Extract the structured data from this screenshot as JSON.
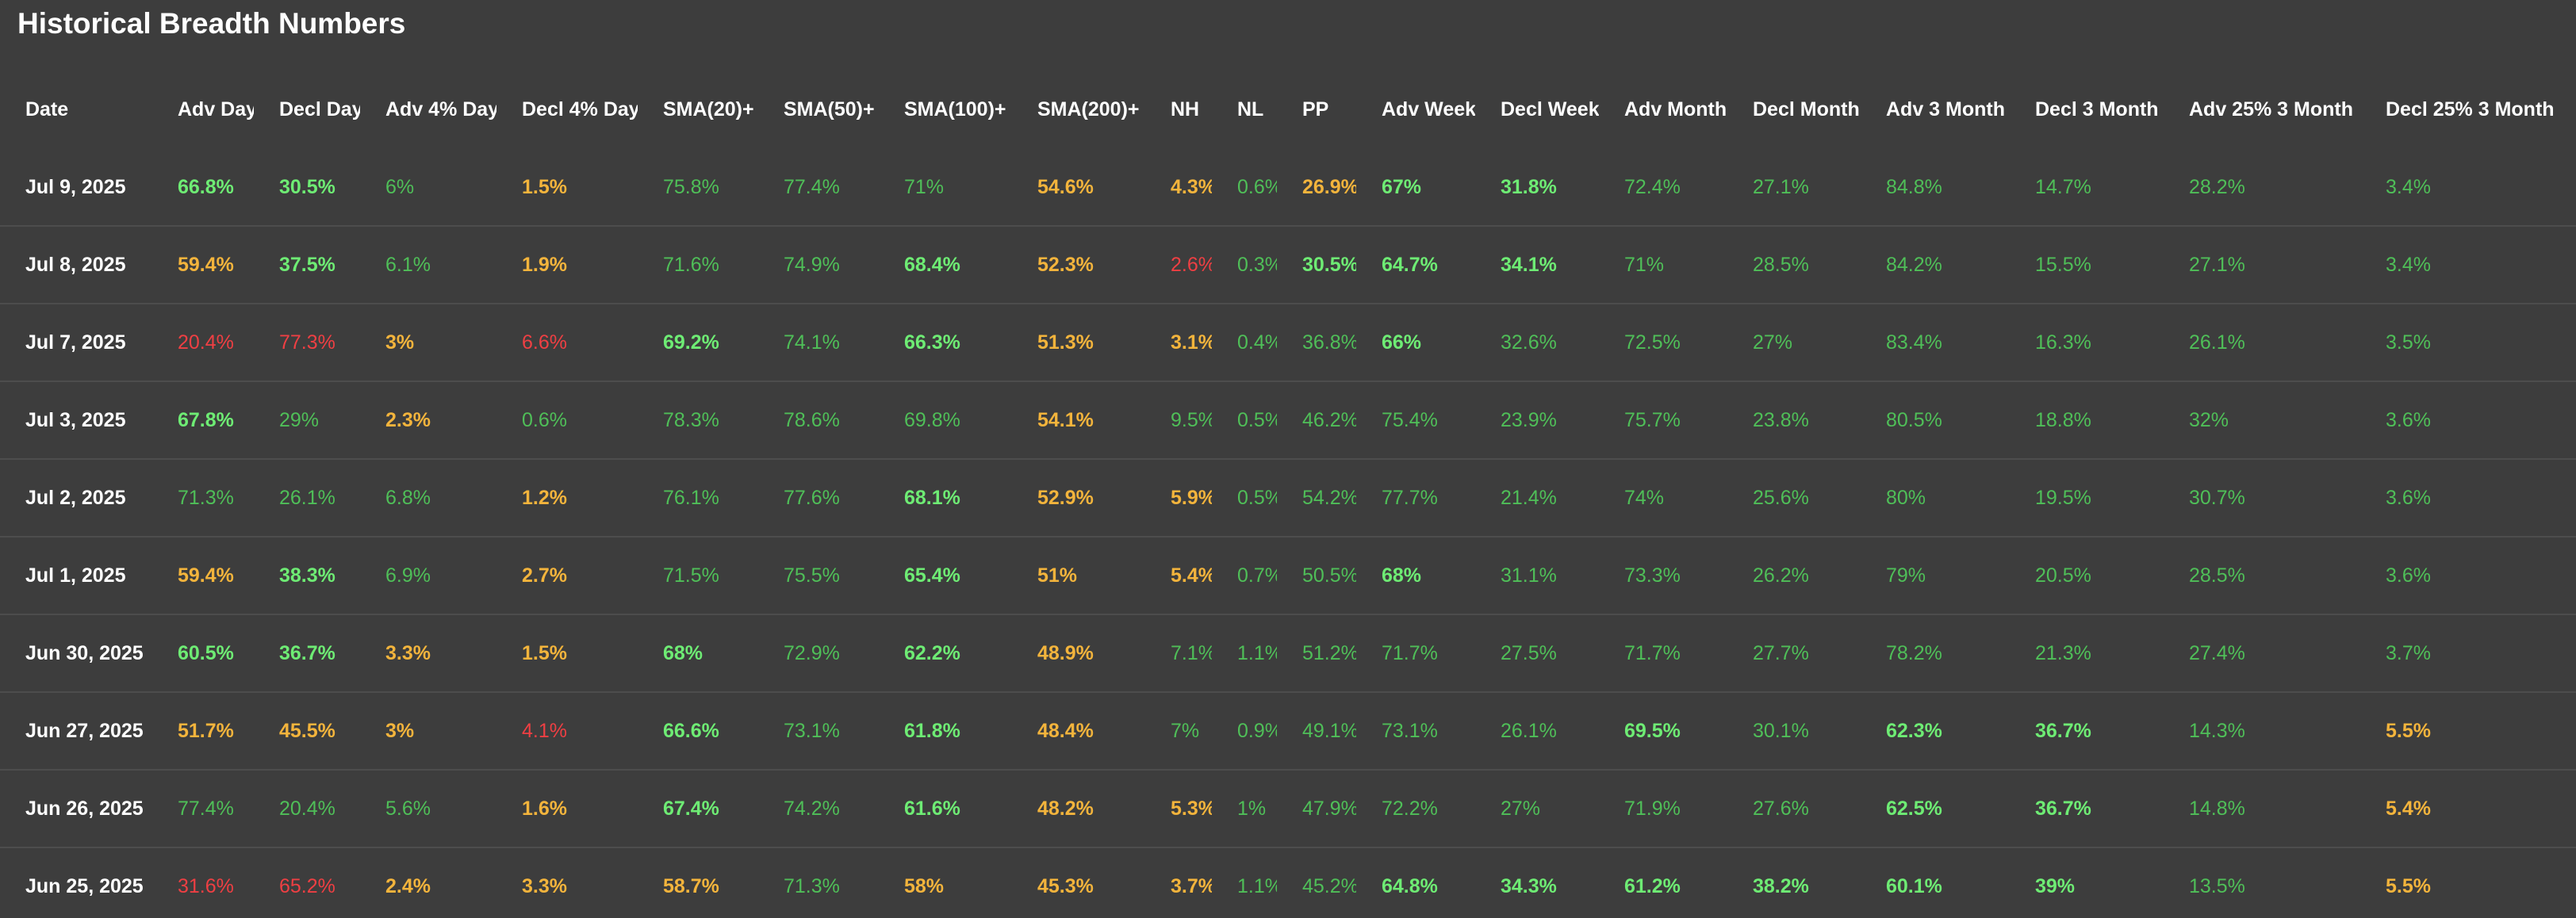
{
  "page": {
    "title": "Historical Breadth Numbers"
  },
  "colors": {
    "background": "#3d3d3d",
    "row_divider": "#4d4d4d",
    "header_text": "#ffffff",
    "green": "#4fbf58",
    "bright_green": "#6eec74",
    "yellow": "#f3b43c",
    "red": "#ef3f43"
  },
  "table": {
    "columns": [
      "Date",
      "Adv Day",
      "Decl Day",
      "Adv 4% Day",
      "Decl 4% Day",
      "SMA(20)+",
      "SMA(50)+",
      "SMA(100)+",
      "SMA(200)+",
      "NH",
      "NL",
      "PP",
      "Adv Week",
      "Decl Week",
      "Adv Month",
      "Decl Month",
      "Adv 3 Month",
      "Decl 3 Month",
      "Adv 25% 3 Month",
      "Decl 25% 3 Month"
    ],
    "rows": [
      {
        "cells": [
          "Jul 9, 2025",
          "66.8%",
          "30.5%",
          "6%",
          "1.5%",
          "75.8%",
          "77.4%",
          "71%",
          "54.6%",
          "4.3%",
          "0.6%",
          "26.9%",
          "67%",
          "31.8%",
          "72.4%",
          "27.1%",
          "84.8%",
          "14.7%",
          "28.2%",
          "3.4%"
        ],
        "colors": [
          "date",
          "gb",
          "gb",
          "g",
          "y",
          "g",
          "g",
          "g",
          "y",
          "y",
          "g",
          "y",
          "gb",
          "gb",
          "g",
          "g",
          "g",
          "g",
          "g",
          "g"
        ]
      },
      {
        "cells": [
          "Jul 8, 2025",
          "59.4%",
          "37.5%",
          "6.1%",
          "1.9%",
          "71.6%",
          "74.9%",
          "68.4%",
          "52.3%",
          "2.6%",
          "0.3%",
          "30.5%",
          "64.7%",
          "34.1%",
          "71%",
          "28.5%",
          "84.2%",
          "15.5%",
          "27.1%",
          "3.4%"
        ],
        "colors": [
          "date",
          "y",
          "gb",
          "g",
          "y",
          "g",
          "g",
          "gb",
          "y",
          "r",
          "g",
          "gb",
          "gb",
          "gb",
          "g",
          "g",
          "g",
          "g",
          "g",
          "g"
        ]
      },
      {
        "cells": [
          "Jul 7, 2025",
          "20.4%",
          "77.3%",
          "3%",
          "6.6%",
          "69.2%",
          "74.1%",
          "66.3%",
          "51.3%",
          "3.1%",
          "0.4%",
          "36.8%",
          "66%",
          "32.6%",
          "72.5%",
          "27%",
          "83.4%",
          "16.3%",
          "26.1%",
          "3.5%"
        ],
        "colors": [
          "date",
          "r",
          "r",
          "y",
          "r",
          "gb",
          "g",
          "gb",
          "y",
          "y",
          "g",
          "g",
          "gb",
          "g",
          "g",
          "g",
          "g",
          "g",
          "g",
          "g"
        ]
      },
      {
        "cells": [
          "Jul 3, 2025",
          "67.8%",
          "29%",
          "2.3%",
          "0.6%",
          "78.3%",
          "78.6%",
          "69.8%",
          "54.1%",
          "9.5%",
          "0.5%",
          "46.2%",
          "75.4%",
          "23.9%",
          "75.7%",
          "23.8%",
          "80.5%",
          "18.8%",
          "32%",
          "3.6%"
        ],
        "colors": [
          "date",
          "gb",
          "g",
          "y",
          "g",
          "g",
          "g",
          "g",
          "y",
          "g",
          "g",
          "g",
          "g",
          "g",
          "g",
          "g",
          "g",
          "g",
          "g",
          "g"
        ]
      },
      {
        "cells": [
          "Jul 2, 2025",
          "71.3%",
          "26.1%",
          "6.8%",
          "1.2%",
          "76.1%",
          "77.6%",
          "68.1%",
          "52.9%",
          "5.9%",
          "0.5%",
          "54.2%",
          "77.7%",
          "21.4%",
          "74%",
          "25.6%",
          "80%",
          "19.5%",
          "30.7%",
          "3.6%"
        ],
        "colors": [
          "date",
          "g",
          "g",
          "g",
          "y",
          "g",
          "g",
          "gb",
          "y",
          "y",
          "g",
          "g",
          "g",
          "g",
          "g",
          "g",
          "g",
          "g",
          "g",
          "g"
        ]
      },
      {
        "cells": [
          "Jul 1, 2025",
          "59.4%",
          "38.3%",
          "6.9%",
          "2.7%",
          "71.5%",
          "75.5%",
          "65.4%",
          "51%",
          "5.4%",
          "0.7%",
          "50.5%",
          "68%",
          "31.1%",
          "73.3%",
          "26.2%",
          "79%",
          "20.5%",
          "28.5%",
          "3.6%"
        ],
        "colors": [
          "date",
          "y",
          "gb",
          "g",
          "y",
          "g",
          "g",
          "gb",
          "y",
          "y",
          "g",
          "g",
          "gb",
          "g",
          "g",
          "g",
          "g",
          "g",
          "g",
          "g"
        ]
      },
      {
        "cells": [
          "Jun 30, 2025",
          "60.5%",
          "36.7%",
          "3.3%",
          "1.5%",
          "68%",
          "72.9%",
          "62.2%",
          "48.9%",
          "7.1%",
          "1.1%",
          "51.2%",
          "71.7%",
          "27.5%",
          "71.7%",
          "27.7%",
          "78.2%",
          "21.3%",
          "27.4%",
          "3.7%"
        ],
        "colors": [
          "date",
          "gb",
          "gb",
          "y",
          "y",
          "gb",
          "g",
          "gb",
          "y",
          "g",
          "g",
          "g",
          "g",
          "g",
          "g",
          "g",
          "g",
          "g",
          "g",
          "g"
        ]
      },
      {
        "cells": [
          "Jun 27, 2025",
          "51.7%",
          "45.5%",
          "3%",
          "4.1%",
          "66.6%",
          "73.1%",
          "61.8%",
          "48.4%",
          "7%",
          "0.9%",
          "49.1%",
          "73.1%",
          "26.1%",
          "69.5%",
          "30.1%",
          "62.3%",
          "36.7%",
          "14.3%",
          "5.5%"
        ],
        "colors": [
          "date",
          "y",
          "y",
          "y",
          "r",
          "gb",
          "g",
          "gb",
          "y",
          "g",
          "g",
          "g",
          "g",
          "g",
          "gb",
          "g",
          "gb",
          "gb",
          "g",
          "y"
        ]
      },
      {
        "cells": [
          "Jun 26, 2025",
          "77.4%",
          "20.4%",
          "5.6%",
          "1.6%",
          "67.4%",
          "74.2%",
          "61.6%",
          "48.2%",
          "5.3%",
          "1%",
          "47.9%",
          "72.2%",
          "27%",
          "71.9%",
          "27.6%",
          "62.5%",
          "36.7%",
          "14.8%",
          "5.4%"
        ],
        "colors": [
          "date",
          "g",
          "g",
          "g",
          "y",
          "gb",
          "g",
          "gb",
          "y",
          "y",
          "g",
          "g",
          "g",
          "g",
          "g",
          "g",
          "gb",
          "gb",
          "g",
          "y"
        ]
      },
      {
        "cells": [
          "Jun 25, 2025",
          "31.6%",
          "65.2%",
          "2.4%",
          "3.3%",
          "58.7%",
          "71.3%",
          "58%",
          "45.3%",
          "3.7%",
          "1.1%",
          "45.2%",
          "64.8%",
          "34.3%",
          "61.2%",
          "38.2%",
          "60.1%",
          "39%",
          "13.5%",
          "5.5%"
        ],
        "colors": [
          "date",
          "r",
          "r",
          "y",
          "y",
          "y",
          "g",
          "y",
          "y",
          "y",
          "g",
          "g",
          "gb",
          "gb",
          "gb",
          "gb",
          "gb",
          "gb",
          "g",
          "y"
        ]
      }
    ]
  }
}
